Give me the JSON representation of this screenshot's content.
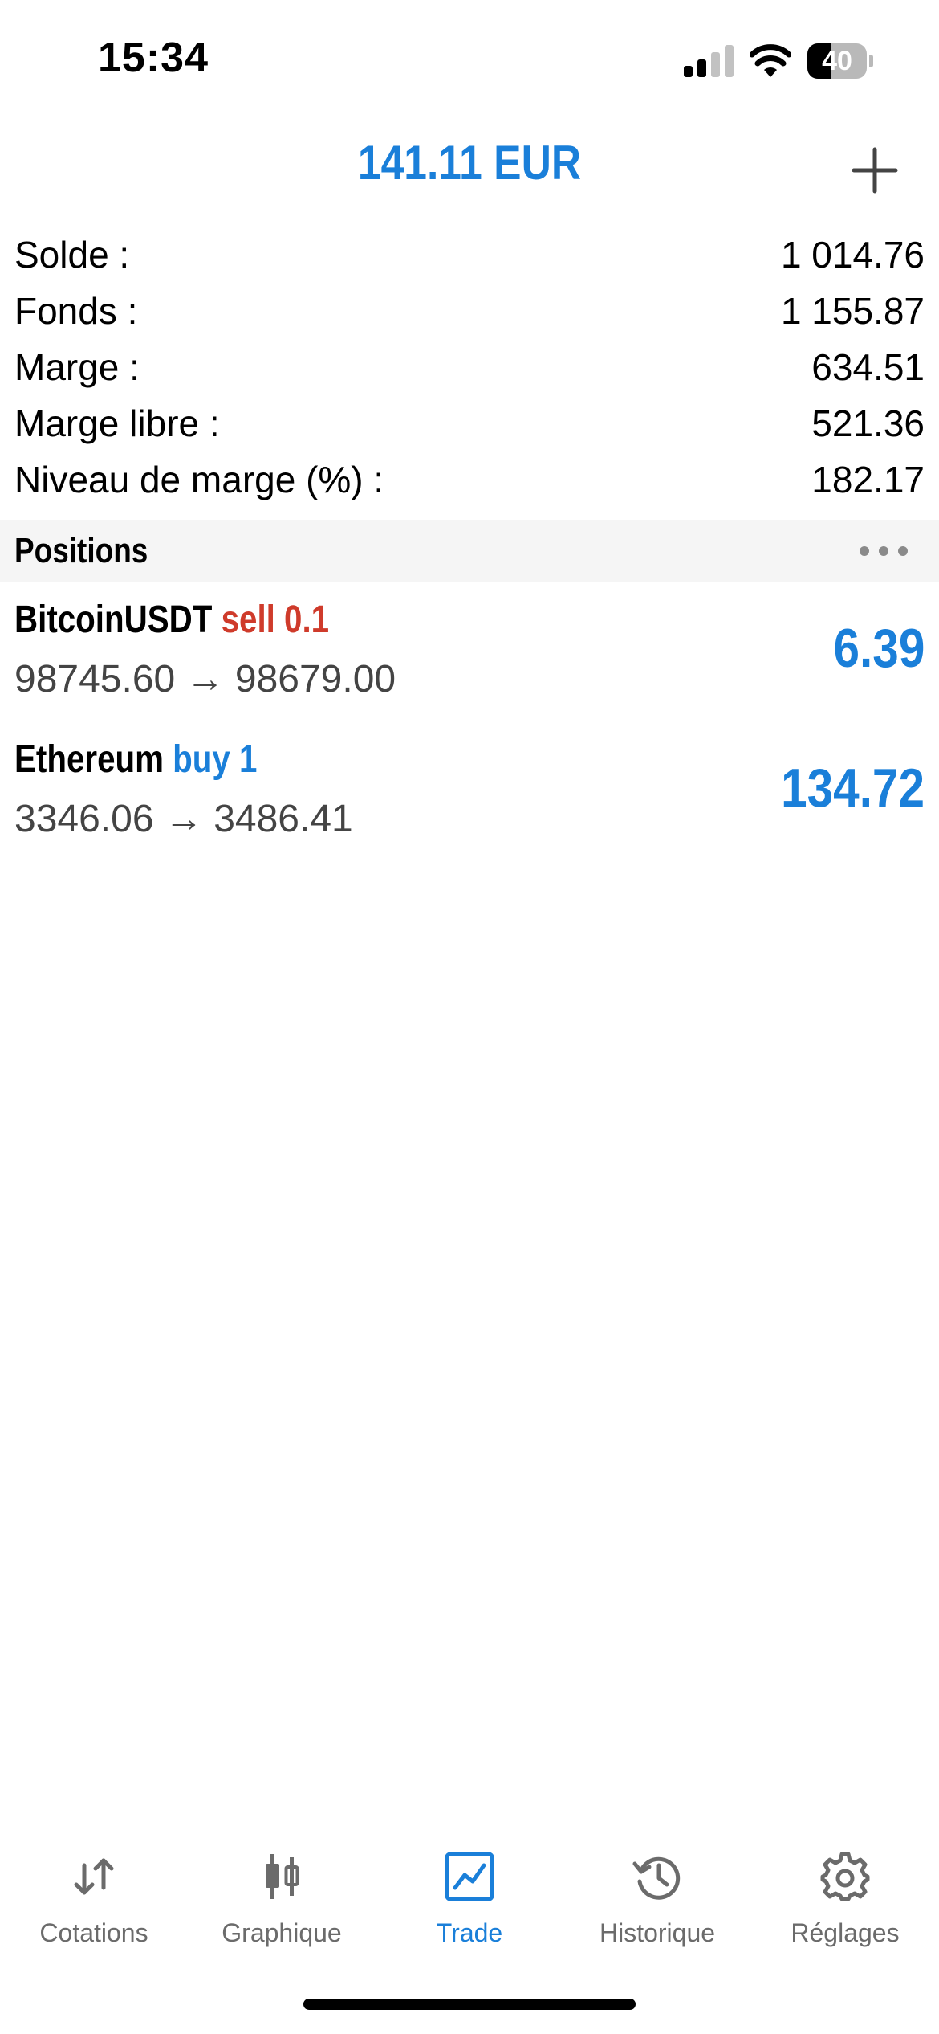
{
  "status_bar": {
    "time": "15:34",
    "battery_level": "40",
    "battery_fraction": 0.4,
    "signal_bars_active": 2,
    "signal_bars_total": 4
  },
  "header": {
    "profit": "141.11 EUR",
    "add_icon": "plus-icon"
  },
  "summary": [
    {
      "label": "Solde :",
      "value": "1 014.76"
    },
    {
      "label": "Fonds :",
      "value": "1 155.87"
    },
    {
      "label": "Marge :",
      "value": "634.51"
    },
    {
      "label": "Marge libre :",
      "value": "521.36"
    },
    {
      "label": "Niveau de marge (%) :",
      "value": "182.17"
    }
  ],
  "positions": {
    "title": "Positions",
    "more_icon": "ellipsis-icon",
    "items": [
      {
        "symbol": "BitcoinUSDT",
        "side": "sell 0.1",
        "open_price": "98745.60",
        "arrow": "→",
        "current_price": "98679.00",
        "profit": "6.39"
      },
      {
        "symbol": "Ethereum",
        "side": "buy 1",
        "open_price": "3346.06",
        "arrow": "→",
        "current_price": "3486.41",
        "profit": "134.72"
      }
    ]
  },
  "tabs": [
    {
      "label": "Cotations",
      "icon": "arrows-updown-icon",
      "active": false
    },
    {
      "label": "Graphique",
      "icon": "candlestick-icon",
      "active": false
    },
    {
      "label": "Trade",
      "icon": "trend-chart-icon",
      "active": true
    },
    {
      "label": "Historique",
      "icon": "history-clock-icon",
      "active": false
    },
    {
      "label": "Réglages",
      "icon": "gear-icon",
      "active": false
    }
  ],
  "colors": {
    "accent": "#1a7fd9",
    "sell": "#cf3b2b",
    "inactive_tab": "#6b6b6b",
    "section_bg": "#f5f5f5"
  }
}
